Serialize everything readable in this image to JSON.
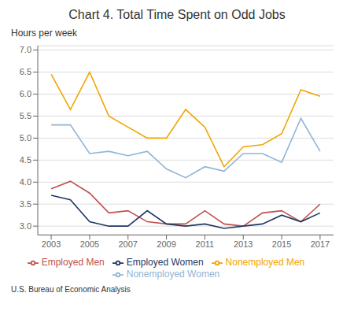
{
  "chart_data": {
    "type": "line",
    "title": "Chart 4. Total Time Spent on Odd Jobs",
    "ylabel": "Hours per week",
    "source": "U.S. Bureau of Economic Analysis",
    "x": [
      2003,
      2004,
      2005,
      2006,
      2007,
      2008,
      2009,
      2010,
      2011,
      2012,
      2013,
      2014,
      2015,
      2016,
      2017
    ],
    "series": [
      {
        "name": "Employed Men",
        "color": "#c0504d",
        "values": [
          3.85,
          4.02,
          3.75,
          3.3,
          3.35,
          3.1,
          3.05,
          3.05,
          3.35,
          3.05,
          3.0,
          3.3,
          3.35,
          3.1,
          3.5
        ]
      },
      {
        "name": "Employed Women",
        "color": "#1f3864",
        "values": [
          3.7,
          3.6,
          3.1,
          3.0,
          3.0,
          3.35,
          3.05,
          3.0,
          3.05,
          2.95,
          3.0,
          3.05,
          3.25,
          3.1,
          3.3
        ]
      },
      {
        "name": "Nonemployed Men",
        "color": "#f0a500",
        "values": [
          6.45,
          5.65,
          6.5,
          5.5,
          5.25,
          5.0,
          5.0,
          5.65,
          5.25,
          4.35,
          4.8,
          4.85,
          5.1,
          6.1,
          5.95
        ]
      },
      {
        "name": "Nonemployed Women",
        "color": "#92b4d4",
        "values": [
          5.3,
          5.3,
          4.65,
          4.7,
          4.6,
          4.7,
          4.3,
          4.1,
          4.35,
          4.25,
          4.65,
          4.65,
          4.45,
          5.45,
          4.7
        ]
      }
    ],
    "xlim": [
      2002.3,
      2017.7
    ],
    "xticks": [
      2003,
      2005,
      2007,
      2009,
      2011,
      2013,
      2015,
      2017
    ],
    "ylim": [
      2.8,
      7.1
    ],
    "yticks": [
      {
        "value": 3.0,
        "label": "3.0"
      },
      3.5,
      {
        "value": 4.0,
        "label": "4.0"
      },
      4.5,
      {
        "value": 5.0,
        "label": "5.0"
      },
      5.5,
      {
        "value": 6.0,
        "label": "6.0"
      },
      6.5,
      {
        "value": 7.0,
        "label": "7.0"
      }
    ],
    "grid": true,
    "legend": "bottom"
  }
}
